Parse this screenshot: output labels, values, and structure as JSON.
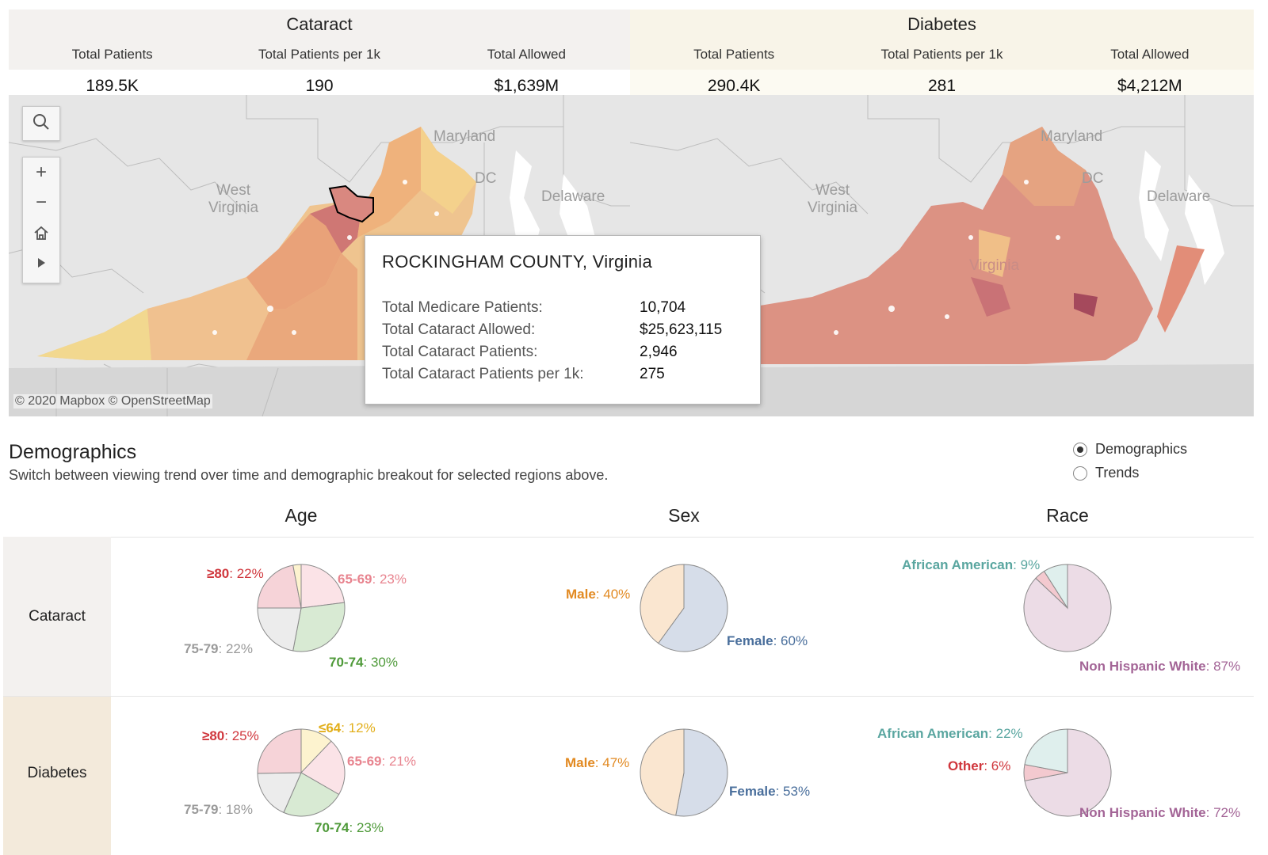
{
  "kpis": {
    "cataract": {
      "title": "Cataract",
      "headers": [
        "Total Patients",
        "Total Patients per 1k",
        "Total Allowed"
      ],
      "values": [
        "189.5K",
        "190",
        "$1,639M"
      ]
    },
    "diabetes": {
      "title": "Diabetes",
      "headers": [
        "Total Patients",
        "Total Patients per 1k",
        "Total Allowed"
      ],
      "values": [
        "290.4K",
        "281",
        "$4,212M"
      ]
    }
  },
  "map": {
    "labels": {
      "west_virginia": "West\nVirginia",
      "maryland": "Maryland",
      "dc": "DC",
      "delaware": "Delaware",
      "virginia": "Virginia"
    },
    "credit": "© 2020 Mapbox © OpenStreetMap",
    "controls": [
      "search-icon",
      "zoom-in-icon",
      "zoom-out-icon",
      "home-icon",
      "play-icon"
    ]
  },
  "tooltip": {
    "title": "ROCKINGHAM COUNTY, Virginia",
    "rows": [
      {
        "label": "Total Medicare Patients:",
        "value": "10,704"
      },
      {
        "label": "Total Cataract Allowed:",
        "value": "$25,623,115"
      },
      {
        "label": "Total Cataract Patients:",
        "value": "2,946"
      },
      {
        "label": "Total Cataract Patients per 1k:",
        "value": "275"
      }
    ]
  },
  "demographics": {
    "title": "Demographics",
    "subtitle": "Switch between viewing trend over time and demographic breakout for selected regions above.",
    "options": [
      {
        "label": "Demographics",
        "selected": true
      },
      {
        "label": "Trends",
        "selected": false
      }
    ],
    "columns": [
      "Age",
      "Sex",
      "Race"
    ],
    "rows": [
      "Cataract",
      "Diabetes"
    ]
  },
  "pies": {
    "cataract_age": [
      {
        "name": "65-69",
        "pct": "23%",
        "value": 23,
        "color": "#fbe3e7",
        "label_color": "#e8848f"
      },
      {
        "name": "70-74",
        "pct": "30%",
        "value": 30,
        "color": "#d8ead3",
        "label_color": "#4f9a3a"
      },
      {
        "name": "75-79",
        "pct": "22%",
        "value": 22,
        "color": "#ececec",
        "label_color": "#9a9a9a"
      },
      {
        "name": "≥80",
        "pct": "22%",
        "value": 22,
        "color": "#f6d3d8",
        "label_color": "#d0373d"
      },
      {
        "name": "",
        "pct": "",
        "value": 3,
        "color": "#fdf3cf",
        "label_color": "#d9a400"
      }
    ],
    "cataract_sex": [
      {
        "name": "Female",
        "pct": "60%",
        "value": 60,
        "color": "#d6dde9",
        "label_color": "#4a6f9c"
      },
      {
        "name": "Male",
        "pct": "40%",
        "value": 40,
        "color": "#fae6d0",
        "label_color": "#e28a22"
      }
    ],
    "cataract_race": [
      {
        "name": "Non Hispanic White",
        "pct": "87%",
        "value": 87,
        "color": "#ecdce6",
        "label_color": "#a36496"
      },
      {
        "name": "",
        "pct": "",
        "value": 4,
        "color": "#f3c9cf",
        "label_color": "#d0373d"
      },
      {
        "name": "African American",
        "pct": "9%",
        "value": 9,
        "color": "#dfefed",
        "label_color": "#5aa6a0"
      }
    ],
    "diabetes_age": [
      {
        "name": "≤64",
        "pct": "12%",
        "value": 12,
        "color": "#fdf3cf",
        "label_color": "#e2ae19"
      },
      {
        "name": "65-69",
        "pct": "21%",
        "value": 21,
        "color": "#fbe3e7",
        "label_color": "#e8848f"
      },
      {
        "name": "70-74",
        "pct": "23%",
        "value": 23,
        "color": "#d8ead3",
        "label_color": "#4f9a3a"
      },
      {
        "name": "75-79",
        "pct": "18%",
        "value": 18,
        "color": "#ececec",
        "label_color": "#9a9a9a"
      },
      {
        "name": "≥80",
        "pct": "25%",
        "value": 25,
        "color": "#f6d3d8",
        "label_color": "#d0373d"
      }
    ],
    "diabetes_sex": [
      {
        "name": "Female",
        "pct": "53%",
        "value": 53,
        "color": "#d6dde9",
        "label_color": "#4a6f9c"
      },
      {
        "name": "Male",
        "pct": "47%",
        "value": 47,
        "color": "#fae6d0",
        "label_color": "#e28a22"
      }
    ],
    "diabetes_race": [
      {
        "name": "Non Hispanic White",
        "pct": "72%",
        "value": 72,
        "color": "#ecdce6",
        "label_color": "#a36496"
      },
      {
        "name": "Other",
        "pct": "6%",
        "value": 6,
        "color": "#f3c9cf",
        "label_color": "#d0373d"
      },
      {
        "name": "African American",
        "pct": "22%",
        "value": 22,
        "color": "#dfefed",
        "label_color": "#5aa6a0"
      }
    ]
  }
}
